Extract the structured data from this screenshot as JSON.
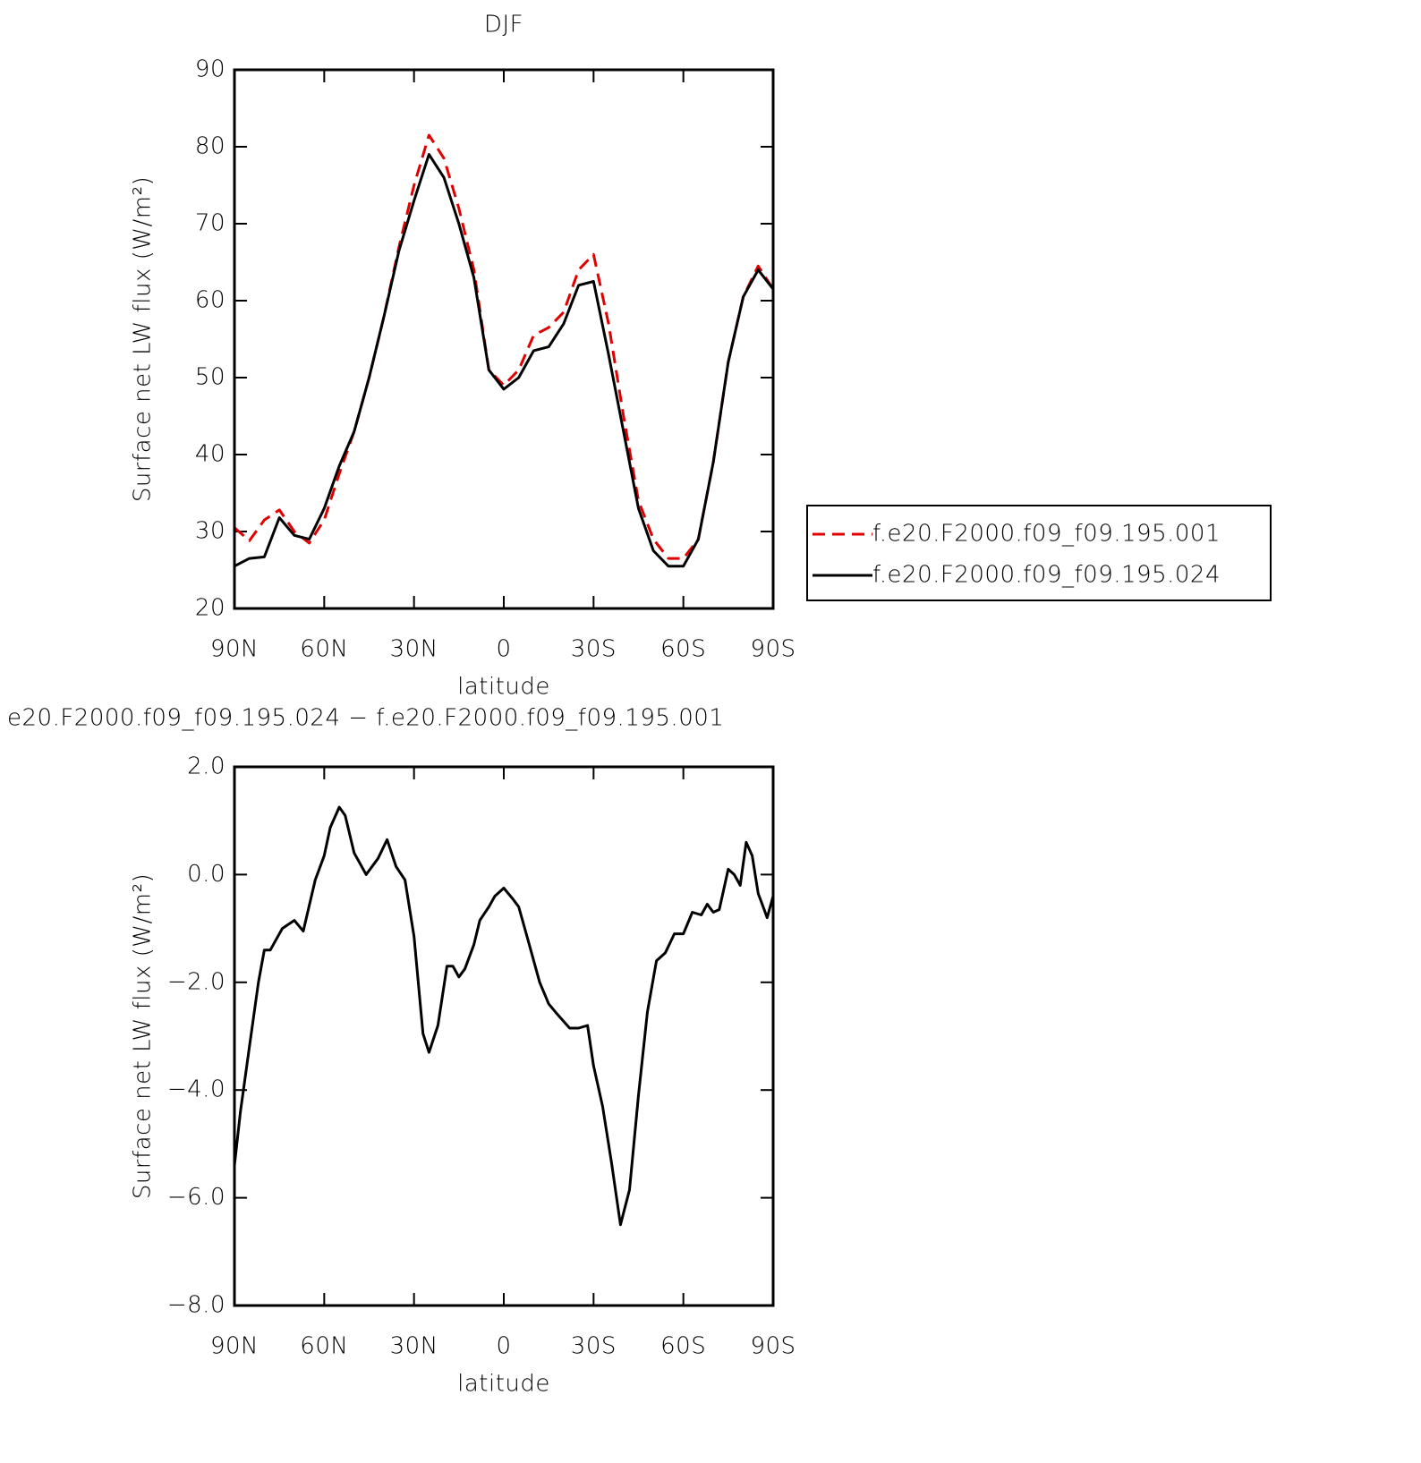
{
  "chart_data": [
    {
      "type": "line",
      "title": "DJF",
      "xlabel": "latitude",
      "ylabel": "Surface net LW flux (W/m²)",
      "x": [
        90,
        85,
        80,
        75,
        70,
        65,
        60,
        55,
        50,
        45,
        40,
        35,
        30,
        25,
        20,
        15,
        10,
        5,
        0,
        -5,
        -10,
        -15,
        -20,
        -25,
        -30,
        -35,
        -40,
        -45,
        -50,
        -55,
        -60,
        -65,
        -70,
        -75,
        -80,
        -85,
        -90
      ],
      "series": [
        {
          "name": "f.e20.F2000.f09_f09.195.001",
          "color": "#e00000",
          "dash": true,
          "values": [
            30.5,
            28.8,
            31.5,
            32.8,
            30,
            28.5,
            31.5,
            37.5,
            43,
            50,
            58,
            67,
            75,
            81.5,
            78.5,
            72,
            64,
            51,
            49,
            51,
            55.5,
            56.5,
            58.5,
            64,
            66,
            57,
            45,
            34,
            29,
            26.5,
            26.5,
            29,
            39,
            52,
            60.5,
            64.5,
            61.5
          ]
        },
        {
          "name": "f.e20.F2000.f09_f09.195.024",
          "color": "#000000",
          "dash": false,
          "values": [
            25.5,
            26.5,
            26.7,
            31.8,
            29.5,
            29,
            33,
            38.5,
            43,
            50,
            58,
            66.5,
            73,
            79,
            76,
            70,
            63,
            51,
            48.5,
            50,
            53.5,
            54,
            57,
            62,
            62.5,
            53,
            43,
            33,
            27.5,
            25.5,
            25.5,
            29,
            39,
            52,
            60.5,
            64,
            61.5
          ]
        }
      ],
      "xlim": [
        90,
        -90
      ],
      "xticks": [
        {
          "value": 90,
          "label": "90N"
        },
        {
          "value": 60,
          "label": "60N"
        },
        {
          "value": 30,
          "label": "30N"
        },
        0,
        {
          "value": -30,
          "label": "30S"
        },
        {
          "value": -60,
          "label": "60S"
        },
        {
          "value": -90,
          "label": "90S"
        }
      ],
      "ylim": [
        20,
        90
      ],
      "yticks": [
        20,
        30,
        40,
        50,
        60,
        70,
        80,
        90
      ],
      "legend": "outside-right"
    },
    {
      "type": "line",
      "title": "e20.F2000.f09_f09.195.024 − f.e20.F2000.f09_f09.195.001",
      "xlabel": "latitude",
      "ylabel": "Surface net LW flux (W/m²)",
      "x": [
        90,
        88,
        85,
        82,
        80,
        78,
        74,
        70,
        67,
        63,
        60,
        58,
        55,
        53,
        50,
        46,
        42,
        39,
        36,
        33,
        30,
        27,
        25,
        22,
        19,
        17,
        15,
        13,
        10,
        8,
        5,
        3,
        0,
        -3,
        -5,
        -8,
        -12,
        -15,
        -18,
        -22,
        -25,
        -28,
        -30,
        -33,
        -36,
        -39,
        -42,
        -45,
        -48,
        -51,
        -54,
        -57,
        -60,
        -63,
        -66,
        -68,
        -70,
        -72,
        -75,
        -77,
        -79,
        -81,
        -83,
        -85,
        -87,
        -88,
        -90
      ],
      "series": [
        {
          "name": null,
          "color": "#000000",
          "dash": false,
          "values": [
            -5.4,
            -4.4,
            -3.2,
            -2.0,
            -1.4,
            -1.4,
            -1.0,
            -0.85,
            -1.05,
            -0.1,
            0.35,
            0.87,
            1.25,
            1.1,
            0.4,
            0.0,
            0.3,
            0.65,
            0.15,
            -0.1,
            -1.15,
            -2.95,
            -3.3,
            -2.8,
            -1.7,
            -1.7,
            -1.9,
            -1.75,
            -1.3,
            -0.85,
            -0.6,
            -0.4,
            -0.25,
            -0.45,
            -0.6,
            -1.2,
            -2.0,
            -2.4,
            -2.6,
            -2.85,
            -2.85,
            -2.8,
            -3.55,
            -4.3,
            -5.35,
            -6.5,
            -5.85,
            -4.1,
            -2.55,
            -1.6,
            -1.45,
            -1.1,
            -1.1,
            -0.7,
            -0.75,
            -0.55,
            -0.7,
            -0.65,
            0.1,
            0.0,
            -0.2,
            0.6,
            0.35,
            -0.35,
            -0.65,
            -0.8,
            -0.4
          ]
        }
      ],
      "xlim": [
        90,
        -90
      ],
      "xticks": [
        {
          "value": 90,
          "label": "90N"
        },
        {
          "value": 60,
          "label": "60N"
        },
        {
          "value": 30,
          "label": "30N"
        },
        0,
        {
          "value": -30,
          "label": "30S"
        },
        {
          "value": -60,
          "label": "60S"
        },
        {
          "value": -90,
          "label": "90S"
        }
      ],
      "ylim": [
        -8,
        2
      ],
      "yticks": [
        {
          "value": -8,
          "label": "−8.0"
        },
        {
          "value": -6,
          "label": "−6.0"
        },
        {
          "value": -4,
          "label": "−4.0"
        },
        {
          "value": -2,
          "label": "−2.0"
        },
        {
          "value": 0,
          "label": "0.0"
        },
        {
          "value": 2,
          "label": "2.0"
        }
      ]
    }
  ]
}
